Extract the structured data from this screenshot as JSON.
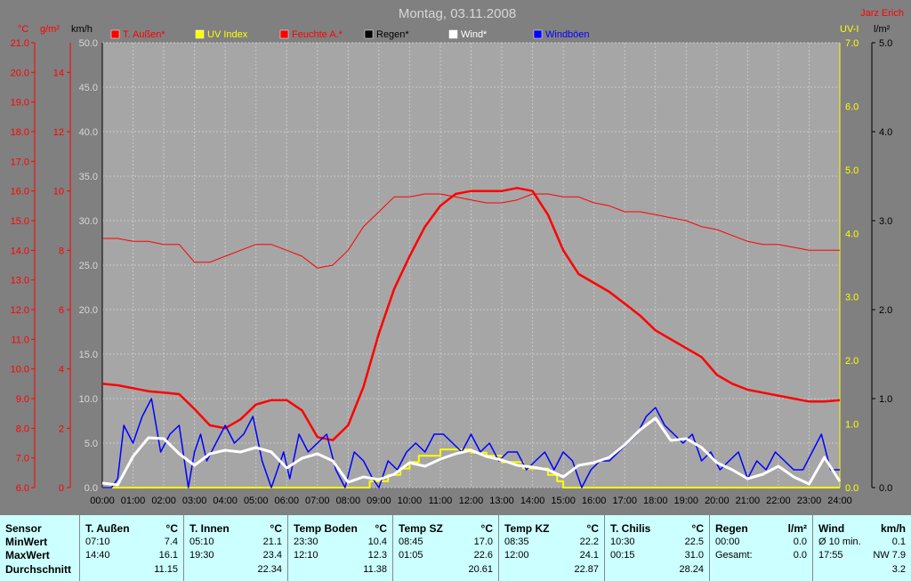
{
  "title": "Montag, 03.11.2008",
  "author": "Jarz Erich",
  "axes": {
    "left1_unit": "°C",
    "left2_unit": "g/m²",
    "left3_unit": "km/h",
    "right1_unit": "UV-I",
    "right2_unit": "l/m²"
  },
  "legend": [
    {
      "label": "T. Außen*",
      "color": "#ff0000"
    },
    {
      "label": "UV Index",
      "color": "#ffff00"
    },
    {
      "label": "Feuchte A.*",
      "color": "#ff0000"
    },
    {
      "label": "Regen*",
      "color": "#000000"
    },
    {
      "label": "Wind*",
      "color": "#ffffff"
    },
    {
      "label": "Windböen",
      "color": "#0000ff"
    }
  ],
  "chart_data": {
    "type": "line",
    "title": "Montag, 03.11.2008",
    "x_ticks": [
      "00:00",
      "01:00",
      "02:00",
      "03:00",
      "04:00",
      "05:00",
      "06:00",
      "07:00",
      "08:00",
      "09:00",
      "10:00",
      "11:00",
      "12:00",
      "13:00",
      "14:00",
      "15:00",
      "16:00",
      "17:00",
      "18:00",
      "19:00",
      "20:00",
      "21:00",
      "22:00",
      "23:00",
      "24:00"
    ],
    "y_temp": {
      "unit": "°C",
      "range": [
        6.0,
        21.0
      ],
      "ticks": [
        "21.0",
        "20.0",
        "19.0",
        "18.0",
        "17.0",
        "16.0",
        "15.0",
        "14.0",
        "13.0",
        "12.0",
        "11.0",
        "10.0",
        "9.0",
        "8.0",
        "7.0",
        "6.0"
      ]
    },
    "y_humidity": {
      "unit": "g/m²",
      "range": [
        0,
        15
      ],
      "ticks": [
        "14",
        "12",
        "10",
        "8",
        "6",
        "4",
        "2",
        "0"
      ]
    },
    "y_wind": {
      "unit": "km/h",
      "range": [
        0,
        50
      ],
      "ticks": [
        "50.0",
        "45.0",
        "40.0",
        "35.0",
        "30.0",
        "25.0",
        "20.0",
        "15.0",
        "10.0",
        "5.0",
        "0.0"
      ]
    },
    "y_uv": {
      "unit": "UV-I",
      "range": [
        0,
        7
      ],
      "ticks": [
        "7.0",
        "6.0",
        "5.0",
        "4.0",
        "3.0",
        "2.0",
        "1.0",
        "0.0"
      ]
    },
    "y_rain": {
      "unit": "l/m²",
      "range": [
        0,
        5
      ],
      "ticks": [
        "5.0",
        "4.0",
        "3.0",
        "2.0",
        "1.0",
        "0.0"
      ]
    },
    "series": [
      {
        "name": "T. Außen*",
        "color": "#ff0000",
        "axis": "temp",
        "width": 2.5,
        "x": [
          0,
          0.5,
          1,
          1.5,
          2,
          2.5,
          3,
          3.5,
          4,
          4.5,
          5,
          5.5,
          6,
          6.5,
          7,
          7.5,
          8,
          8.5,
          9,
          9.5,
          10,
          10.5,
          11,
          11.5,
          12,
          12.5,
          13,
          13.5,
          14,
          14.5,
          15,
          15.5,
          16,
          16.5,
          17,
          17.5,
          18,
          18.5,
          19,
          19.5,
          20,
          20.5,
          21,
          21.5,
          22,
          22.5,
          23,
          23.5,
          24
        ],
        "values": [
          9.5,
          9.45,
          9.35,
          9.25,
          9.2,
          9.15,
          8.65,
          8.1,
          8.0,
          8.3,
          8.8,
          8.95,
          8.95,
          8.6,
          7.7,
          7.6,
          8.1,
          9.4,
          11.2,
          12.7,
          13.8,
          14.8,
          15.5,
          15.9,
          16.0,
          16.0,
          16.0,
          16.1,
          16.0,
          15.2,
          14.0,
          13.2,
          12.9,
          12.6,
          12.2,
          11.8,
          11.3,
          11.0,
          10.7,
          10.4,
          9.8,
          9.5,
          9.3,
          9.2,
          9.1,
          9.0,
          8.9,
          8.9,
          8.95
        ]
      },
      {
        "name": "Feuchte A.*",
        "color": "#ff0000",
        "axis": "temp",
        "width": 1,
        "x": [
          0,
          0.5,
          1,
          1.5,
          2,
          2.5,
          3,
          3.5,
          4,
          4.5,
          5,
          5.5,
          6,
          6.5,
          7,
          7.5,
          8,
          8.5,
          9,
          9.5,
          10,
          10.5,
          11,
          11.5,
          12,
          12.5,
          13,
          13.5,
          14,
          14.5,
          15,
          15.5,
          16,
          16.5,
          17,
          17.5,
          18,
          18.5,
          19,
          19.5,
          20,
          20.5,
          21,
          21.5,
          22,
          22.5,
          23,
          23.5,
          24
        ],
        "values": [
          14.4,
          14.4,
          14.3,
          14.3,
          14.2,
          14.2,
          13.6,
          13.6,
          13.8,
          14.0,
          14.2,
          14.2,
          14.0,
          13.8,
          13.4,
          13.5,
          14.0,
          14.8,
          15.3,
          15.8,
          15.8,
          15.9,
          15.9,
          15.8,
          15.7,
          15.6,
          15.6,
          15.7,
          15.9,
          15.9,
          15.8,
          15.8,
          15.6,
          15.5,
          15.3,
          15.3,
          15.2,
          15.1,
          15.0,
          14.8,
          14.7,
          14.5,
          14.3,
          14.2,
          14.2,
          14.1,
          14.0,
          14.0,
          14.0
        ]
      },
      {
        "name": "UV Index",
        "color": "#ffff00",
        "axis": "uv",
        "width": 2,
        "x": [
          0,
          8.7,
          8.7,
          9.3,
          9.3,
          9.7,
          9.7,
          10.0,
          10.0,
          10.3,
          10.3,
          11.0,
          11.0,
          12.0,
          12.0,
          12.5,
          12.5,
          13.0,
          13.0,
          13.7,
          13.7,
          14.5,
          14.5,
          14.8,
          14.8,
          15.0,
          15.0,
          24
        ],
        "values": [
          0,
          0,
          0.1,
          0.1,
          0.2,
          0.2,
          0.3,
          0.3,
          0.4,
          0.4,
          0.5,
          0.5,
          0.6,
          0.6,
          0.55,
          0.55,
          0.5,
          0.5,
          0.4,
          0.4,
          0.3,
          0.3,
          0.2,
          0.2,
          0.1,
          0.1,
          0,
          0
        ]
      },
      {
        "name": "Wind*",
        "color": "#ffffff",
        "axis": "wind",
        "width": 3,
        "x": [
          0,
          0.5,
          1,
          1.5,
          2,
          2.5,
          3,
          3.5,
          4,
          4.5,
          5,
          5.5,
          6,
          6.5,
          7,
          7.5,
          8,
          8.5,
          9,
          9.5,
          10,
          10.5,
          11,
          11.5,
          12,
          12.5,
          13,
          13.5,
          14,
          14.5,
          15,
          15.5,
          16,
          16.5,
          17,
          17.5,
          18,
          18.5,
          19,
          19.5,
          20,
          20.5,
          21,
          21.5,
          22,
          22.5,
          23,
          23.5,
          24
        ],
        "values": [
          0.5,
          0.3,
          3.5,
          5.6,
          5.5,
          3.8,
          2.5,
          3.8,
          4.2,
          4.0,
          4.5,
          4.0,
          2.2,
          3.3,
          3.8,
          3.0,
          0.6,
          1.2,
          0.9,
          1.5,
          2.8,
          2.4,
          3.2,
          3.8,
          4.2,
          3.5,
          3.1,
          2.5,
          2.3,
          2.0,
          1.2,
          2.5,
          2.8,
          3.4,
          4.8,
          6.5,
          7.8,
          5.3,
          5.5,
          4.5,
          2.8,
          2.0,
          1.0,
          1.5,
          2.4,
          1.2,
          0.4,
          3.4,
          0.7
        ]
      },
      {
        "name": "Windböen",
        "color": "#0000ff",
        "axis": "wind",
        "width": 1.5,
        "x": [
          0,
          0.3,
          0.5,
          0.7,
          1,
          1.3,
          1.6,
          1.9,
          2.2,
          2.5,
          2.8,
          3,
          3.2,
          3.4,
          3.7,
          4,
          4.3,
          4.6,
          4.9,
          5.2,
          5.5,
          5.7,
          5.9,
          6.1,
          6.4,
          6.7,
          7,
          7.3,
          7.6,
          7.9,
          8.2,
          8.5,
          8.8,
          9,
          9.3,
          9.6,
          9.9,
          10.2,
          10.5,
          10.8,
          11.1,
          11.4,
          11.7,
          12,
          12.3,
          12.6,
          12.9,
          13.2,
          13.5,
          13.8,
          14.1,
          14.4,
          14.7,
          15,
          15.3,
          15.6,
          15.9,
          16.2,
          16.5,
          16.8,
          17.1,
          17.4,
          17.7,
          18,
          18.3,
          18.6,
          18.9,
          19.2,
          19.5,
          19.8,
          20.1,
          20.4,
          20.7,
          21,
          21.3,
          21.6,
          21.9,
          22.2,
          22.5,
          22.8,
          23.1,
          23.4,
          23.7,
          24
        ],
        "values": [
          0,
          0,
          1,
          7,
          5,
          8,
          10,
          4,
          6,
          7,
          0,
          4,
          6,
          3,
          5,
          7,
          5,
          6,
          8,
          3,
          0,
          2,
          4,
          1,
          6,
          4,
          5,
          6,
          2,
          0,
          4,
          3,
          1,
          0,
          3,
          2,
          4,
          5,
          4,
          6,
          6,
          5,
          4,
          6,
          4,
          5,
          3,
          4,
          4,
          2,
          3,
          4,
          2,
          4,
          3,
          0,
          2,
          3,
          3,
          4,
          5,
          6,
          8,
          9,
          7,
          6,
          5,
          6,
          3,
          4,
          2,
          3,
          4,
          1,
          3,
          2,
          4,
          3,
          2,
          2,
          4,
          6,
          2,
          2
        ]
      }
    ]
  },
  "stats": {
    "columns": [
      {
        "sensor": "Sensor",
        "rows": [
          "MinWert",
          "MaxWert",
          "Durchschnitt"
        ]
      },
      {
        "name": "T. Außen",
        "unit": "°C",
        "min_time": "07:10",
        "min_val": "7.4",
        "max_time": "14:40",
        "max_val": "16.1",
        "avg": "11.15"
      },
      {
        "name": "T. Innen",
        "unit": "°C",
        "min_time": "05:10",
        "min_val": "21.1",
        "max_time": "19:30",
        "max_val": "23.4",
        "avg": "22.34"
      },
      {
        "name": "Temp Boden",
        "unit": "°C",
        "min_time": "23:30",
        "min_val": "10.4",
        "max_time": "12:10",
        "max_val": "12.3",
        "avg": "11.38"
      },
      {
        "name": "Temp SZ",
        "unit": "°C",
        "min_time": "08:45",
        "min_val": "17.0",
        "max_time": "01:05",
        "max_val": "22.6",
        "avg": "20.61"
      },
      {
        "name": "Temp KZ",
        "unit": "°C",
        "min_time": "08:35",
        "min_val": "22.2",
        "max_time": "12:00",
        "max_val": "24.1",
        "avg": "22.87"
      },
      {
        "name": "T. Chilis",
        "unit": "°C",
        "min_time": "10:30",
        "min_val": "22.5",
        "max_time": "00:15",
        "max_val": "31.0",
        "avg": "28.24"
      },
      {
        "name": "Regen",
        "unit": "l/m²",
        "min_time": "00:00",
        "min_val": "0.0",
        "max_time": "Gesamt:",
        "max_val": "0.0",
        "avg": ""
      },
      {
        "name": "Wind",
        "unit": "km/h",
        "min_time": "Ø 10 min.",
        "min_val": "0.1",
        "max_time": "17:55",
        "max_val": "NW 7.9",
        "avg": "3.2"
      }
    ]
  }
}
